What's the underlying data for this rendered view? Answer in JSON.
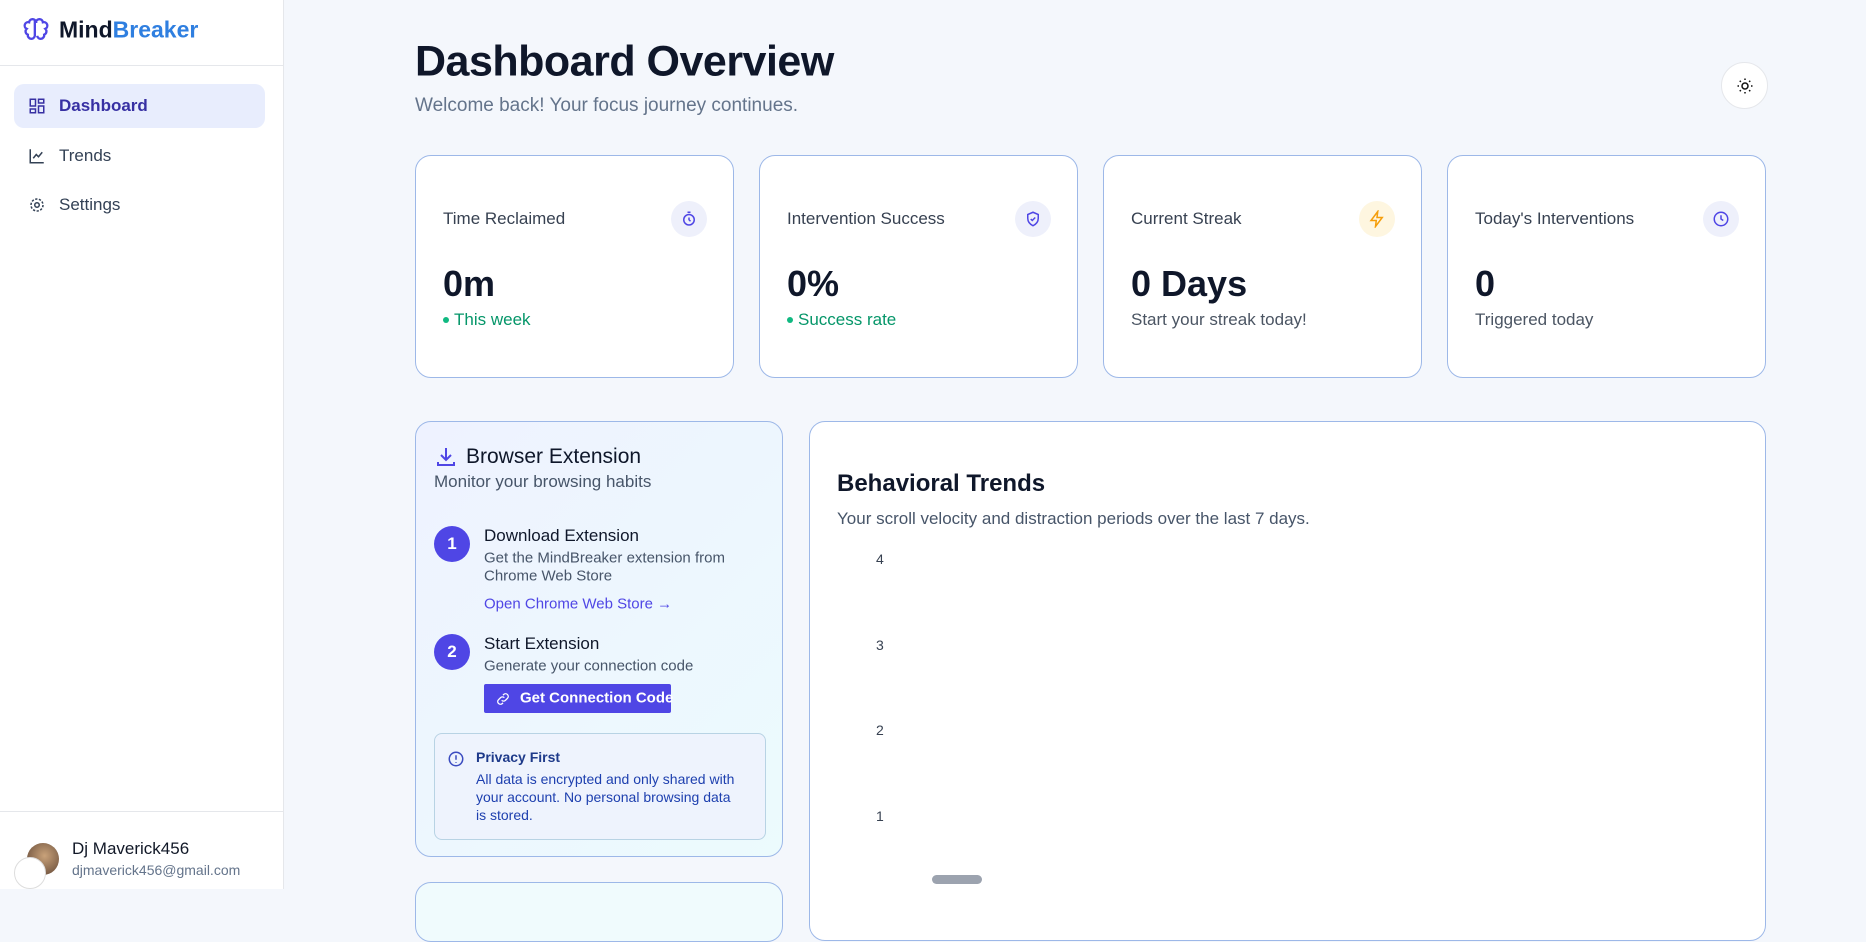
{
  "sidebar": {
    "brand_first": "Mind",
    "brand_second": "Breaker",
    "nav": [
      "Dashboard",
      "Trends",
      "Settings"
    ],
    "user": {
      "name": "Dj Maverick456",
      "email": "djmaverick456@gmail.com"
    }
  },
  "header": {
    "title": "Dashboard Overview",
    "subtitle": "Welcome back! Your focus journey continues."
  },
  "stats": [
    {
      "label": "Time Reclaimed",
      "value": "0m",
      "note": "This week"
    },
    {
      "label": "Intervention Success",
      "value": "0%",
      "note": "Success rate"
    },
    {
      "label": "Current Streak",
      "value": "0 Days",
      "note": "Start your streak today!"
    },
    {
      "label": "Today's Interventions",
      "value": "0",
      "note": "Triggered today"
    }
  ],
  "extension": {
    "title": "Browser Extension",
    "subtitle": "Monitor your browsing habits",
    "steps": [
      {
        "number": 1,
        "title": "Download Extension",
        "description": [
          "Get the MindBreaker extension from",
          "Chrome Web Store"
        ],
        "link": "Open Chrome Web Store →"
      },
      {
        "number": 2,
        "title": "Start Extension",
        "description": [
          "Generate your connection code"
        ],
        "button": "Get Connection Code"
      }
    ],
    "privacy": {
      "title": "Privacy First",
      "text": [
        "All data is encrypted and only shared with",
        "your account. No personal browsing data",
        "is stored."
      ]
    }
  },
  "trends": {
    "title": "Behavioral Trends",
    "subtitle": "Your scroll velocity and distraction periods over the last 7 days.",
    "yticks": [
      4,
      3,
      2,
      1
    ]
  }
}
